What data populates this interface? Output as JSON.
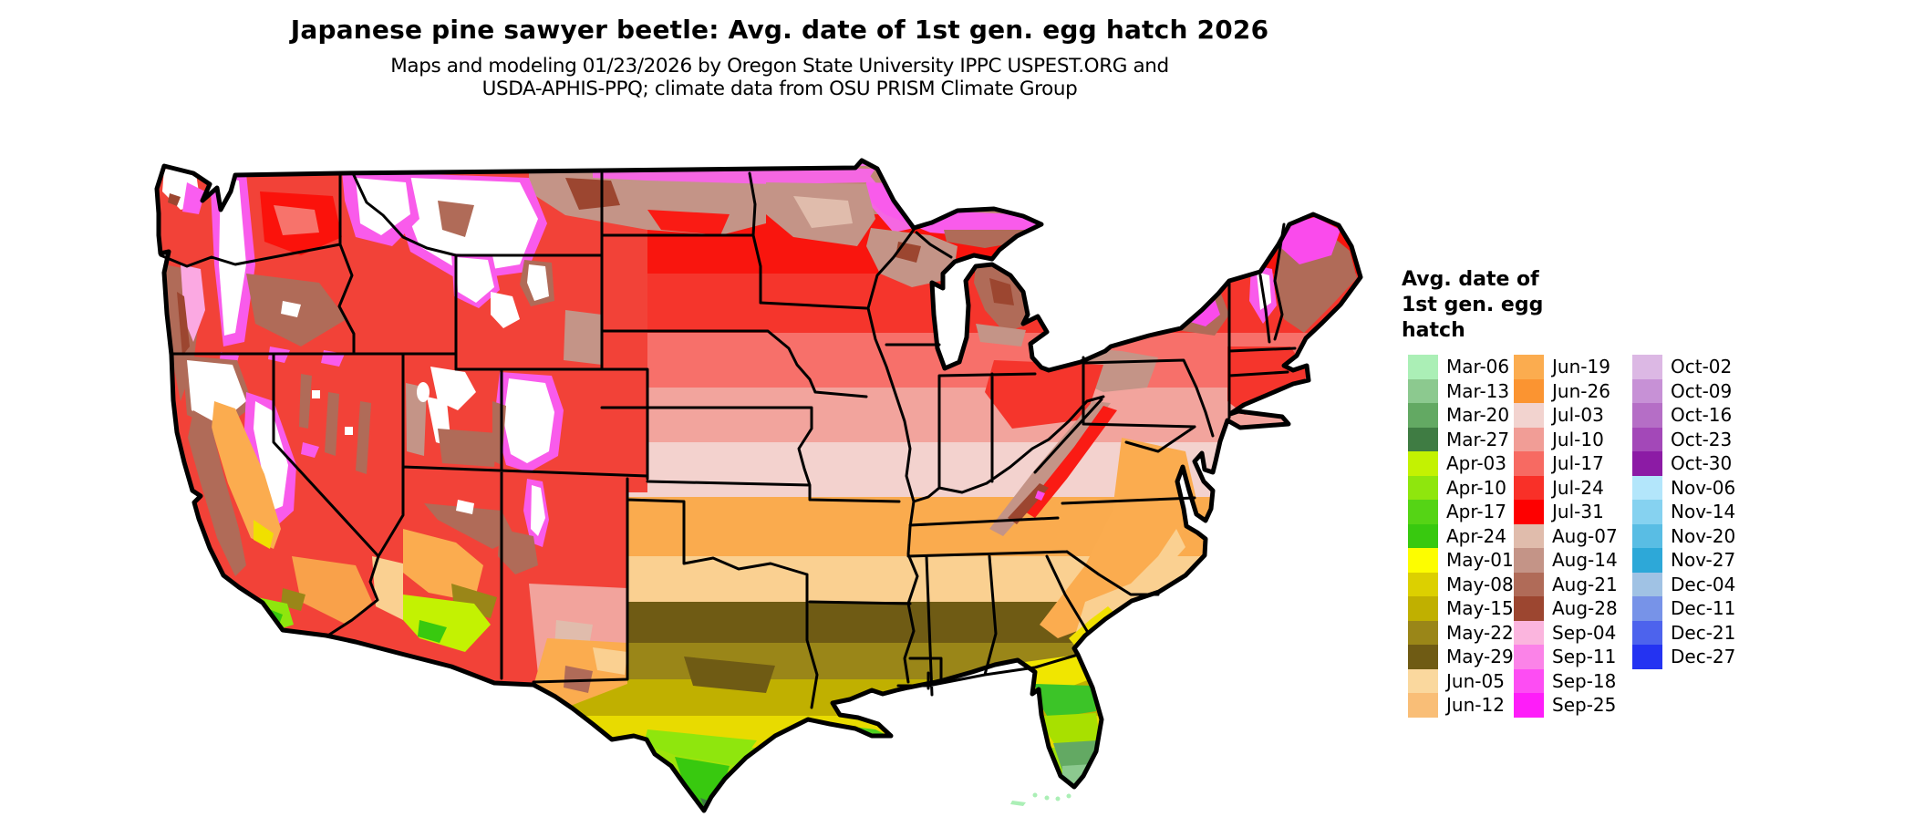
{
  "background_color": "#FFFFFF",
  "title": "Japanese pine sawyer beetle: Avg. date of 1st gen. egg hatch 2026",
  "subtitle_line1": "Maps and modeling 01/23/2026 by Oregon State University IPPC USPEST.ORG and",
  "subtitle_line2": "USDA-APHIS-PPQ; climate data from OSU PRISM Climate Group",
  "legend": {
    "title": "Avg. date of\n1st gen. egg\nhatch",
    "columns": [
      {
        "items": [
          {
            "label": "Mar-06",
            "color": "#ABEFB6"
          },
          {
            "label": "Mar-13",
            "color": "#8CC98F"
          },
          {
            "label": "Mar-20",
            "color": "#63A963"
          },
          {
            "label": "Mar-27",
            "color": "#3F7C43"
          },
          {
            "label": "Apr-03",
            "color": "#C3F202"
          },
          {
            "label": "Apr-10",
            "color": "#8FE60D"
          },
          {
            "label": "Apr-17",
            "color": "#55D415"
          },
          {
            "label": "Apr-24",
            "color": "#38C90F"
          },
          {
            "label": "May-01",
            "color": "#FDFD00"
          },
          {
            "label": "May-08",
            "color": "#DCD000"
          },
          {
            "label": "May-15",
            "color": "#C0B000"
          },
          {
            "label": "May-22",
            "color": "#9A8618"
          },
          {
            "label": "May-29",
            "color": "#6F5B14"
          },
          {
            "label": "Jun-05",
            "color": "#FAD89E"
          },
          {
            "label": "Jun-12",
            "color": "#F9BE77"
          }
        ]
      },
      {
        "items": [
          {
            "label": "Jun-19",
            "color": "#FBAC4F"
          },
          {
            "label": "Jun-26",
            "color": "#FB9431"
          },
          {
            "label": "Jul-03",
            "color": "#F2D3CF"
          },
          {
            "label": "Jul-10",
            "color": "#F19D96"
          },
          {
            "label": "Jul-17",
            "color": "#F76A62"
          },
          {
            "label": "Jul-24",
            "color": "#F93028"
          },
          {
            "label": "Jul-31",
            "color": "#FE0000"
          },
          {
            "label": "Aug-07",
            "color": "#E0BCAC"
          },
          {
            "label": "Aug-14",
            "color": "#C49487"
          },
          {
            "label": "Aug-21",
            "color": "#B06B58"
          },
          {
            "label": "Aug-28",
            "color": "#9C4630"
          },
          {
            "label": "Sep-04",
            "color": "#FBB5DE"
          },
          {
            "label": "Sep-11",
            "color": "#FB83E8"
          },
          {
            "label": "Sep-18",
            "color": "#FD4DF3"
          },
          {
            "label": "Sep-25",
            "color": "#FE1DF9"
          }
        ]
      },
      {
        "items": [
          {
            "label": "Oct-02",
            "color": "#DCB8E4"
          },
          {
            "label": "Oct-09",
            "color": "#C791D6"
          },
          {
            "label": "Oct-16",
            "color": "#B56EC6"
          },
          {
            "label": "Oct-23",
            "color": "#A348B8"
          },
          {
            "label": "Oct-30",
            "color": "#8C1BA5"
          },
          {
            "label": "Nov-06",
            "color": "#B3E6FB"
          },
          {
            "label": "Nov-14",
            "color": "#86D2F0"
          },
          {
            "label": "Nov-20",
            "color": "#59BDE4"
          },
          {
            "label": "Nov-27",
            "color": "#2DA8D8"
          },
          {
            "label": "Dec-04",
            "color": "#A0C2E4"
          },
          {
            "label": "Dec-11",
            "color": "#7793E8"
          },
          {
            "label": "Dec-21",
            "color": "#4D63ED"
          },
          {
            "label": "Dec-27",
            "color": "#2433F2"
          }
        ]
      }
    ]
  },
  "chart_data": {
    "type": "heatmap",
    "subtype": "classed choropleth raster map",
    "region": "contiguous United States",
    "title": "Japanese pine sawyer beetle: Avg. date of 1st gen. egg hatch 2026",
    "variable": "Avg. date of 1st gen. egg hatch",
    "legend_position": "right",
    "classes": [
      {
        "label": "Mar-06",
        "color": "#ABEFB6"
      },
      {
        "label": "Mar-13",
        "color": "#8CC98F"
      },
      {
        "label": "Mar-20",
        "color": "#63A963"
      },
      {
        "label": "Mar-27",
        "color": "#3F7C43"
      },
      {
        "label": "Apr-03",
        "color": "#C3F202"
      },
      {
        "label": "Apr-10",
        "color": "#8FE60D"
      },
      {
        "label": "Apr-17",
        "color": "#55D415"
      },
      {
        "label": "Apr-24",
        "color": "#38C90F"
      },
      {
        "label": "May-01",
        "color": "#FDFD00"
      },
      {
        "label": "May-08",
        "color": "#DCD000"
      },
      {
        "label": "May-15",
        "color": "#C0B000"
      },
      {
        "label": "May-22",
        "color": "#9A8618"
      },
      {
        "label": "May-29",
        "color": "#6F5B14"
      },
      {
        "label": "Jun-05",
        "color": "#FAD89E"
      },
      {
        "label": "Jun-12",
        "color": "#F9BE77"
      },
      {
        "label": "Jun-19",
        "color": "#FBAC4F"
      },
      {
        "label": "Jun-26",
        "color": "#FB9431"
      },
      {
        "label": "Jul-03",
        "color": "#F2D3CF"
      },
      {
        "label": "Jul-10",
        "color": "#F19D96"
      },
      {
        "label": "Jul-17",
        "color": "#F76A62"
      },
      {
        "label": "Jul-24",
        "color": "#F93028"
      },
      {
        "label": "Jul-31",
        "color": "#FE0000"
      },
      {
        "label": "Aug-07",
        "color": "#E0BCAC"
      },
      {
        "label": "Aug-14",
        "color": "#C49487"
      },
      {
        "label": "Aug-21",
        "color": "#B06B58"
      },
      {
        "label": "Aug-28",
        "color": "#9C4630"
      },
      {
        "label": "Sep-04",
        "color": "#FBB5DE"
      },
      {
        "label": "Sep-11",
        "color": "#FB83E8"
      },
      {
        "label": "Sep-18",
        "color": "#FD4DF3"
      },
      {
        "label": "Sep-25",
        "color": "#FE1DF9"
      },
      {
        "label": "Oct-02",
        "color": "#DCB8E4"
      },
      {
        "label": "Oct-09",
        "color": "#C791D6"
      },
      {
        "label": "Oct-16",
        "color": "#B56EC6"
      },
      {
        "label": "Oct-23",
        "color": "#A348B8"
      },
      {
        "label": "Oct-30",
        "color": "#8C1BA5"
      },
      {
        "label": "Nov-06",
        "color": "#B3E6FB"
      },
      {
        "label": "Nov-14",
        "color": "#86D2F0"
      },
      {
        "label": "Nov-20",
        "color": "#59BDE4"
      },
      {
        "label": "Nov-27",
        "color": "#2DA8D8"
      },
      {
        "label": "Dec-04",
        "color": "#A0C2E4"
      },
      {
        "label": "Dec-11",
        "color": "#7793E8"
      },
      {
        "label": "Dec-21",
        "color": "#4D63ED"
      },
      {
        "label": "Dec-27",
        "color": "#2433F2"
      }
    ]
  }
}
